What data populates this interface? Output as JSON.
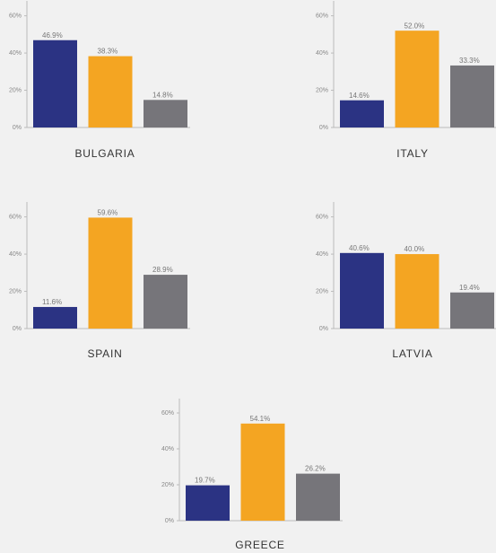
{
  "chart_data": [
    {
      "type": "bar",
      "title": "BULGARIA",
      "categories": [
        null,
        null,
        null
      ],
      "values": [
        46.9,
        38.3,
        14.8
      ],
      "value_labels": [
        "46.9%",
        "38.3%",
        "14.8%"
      ],
      "colors": [
        "#2b3383",
        "#f4a522",
        "#76757a"
      ],
      "ylim": [
        0,
        68
      ],
      "yticks": [
        {
          "value": 0,
          "label": "0%"
        },
        {
          "value": 20,
          "label": "20%"
        },
        {
          "value": 40,
          "label": "40%"
        },
        {
          "value": 60,
          "label": "60%"
        }
      ]
    },
    {
      "type": "bar",
      "title": "ITALY",
      "categories": [
        null,
        null,
        null
      ],
      "values": [
        14.6,
        52.0,
        33.3
      ],
      "value_labels": [
        "14.6%",
        "52.0%",
        "33.3%"
      ],
      "colors": [
        "#2b3383",
        "#f4a522",
        "#76757a"
      ],
      "ylim": [
        0,
        68
      ],
      "yticks": [
        {
          "value": 0,
          "label": "0%"
        },
        {
          "value": 20,
          "label": "20%"
        },
        {
          "value": 40,
          "label": "40%"
        },
        {
          "value": 60,
          "label": "60%"
        }
      ]
    },
    {
      "type": "bar",
      "title": "SPAIN",
      "categories": [
        null,
        null,
        null
      ],
      "values": [
        11.6,
        59.6,
        28.9
      ],
      "value_labels": [
        "11.6%",
        "59.6%",
        "28.9%"
      ],
      "colors": [
        "#2b3383",
        "#f4a522",
        "#76757a"
      ],
      "ylim": [
        0,
        68
      ],
      "yticks": [
        {
          "value": 0,
          "label": "0%"
        },
        {
          "value": 20,
          "label": "20%"
        },
        {
          "value": 40,
          "label": "40%"
        },
        {
          "value": 60,
          "label": "60%"
        }
      ]
    },
    {
      "type": "bar",
      "title": "LATVIA",
      "categories": [
        null,
        null,
        null
      ],
      "values": [
        40.6,
        40.0,
        19.4
      ],
      "value_labels": [
        "40.6%",
        "40.0%",
        "19.4%"
      ],
      "colors": [
        "#2b3383",
        "#f4a522",
        "#76757a"
      ],
      "ylim": [
        0,
        68
      ],
      "yticks": [
        {
          "value": 0,
          "label": "0%"
        },
        {
          "value": 20,
          "label": "20%"
        },
        {
          "value": 40,
          "label": "40%"
        },
        {
          "value": 60,
          "label": "60%"
        }
      ]
    },
    {
      "type": "bar",
      "title": "GREECE",
      "categories": [
        null,
        null,
        null
      ],
      "values": [
        19.7,
        54.1,
        26.2
      ],
      "value_labels": [
        "19.7%",
        "54.1%",
        "26.2%"
      ],
      "colors": [
        "#2b3383",
        "#f4a522",
        "#76757a"
      ],
      "ylim": [
        0,
        68
      ],
      "yticks": [
        {
          "value": 0,
          "label": "0%"
        },
        {
          "value": 20,
          "label": "20%"
        },
        {
          "value": 40,
          "label": "40%"
        },
        {
          "value": 60,
          "label": "60%"
        }
      ]
    }
  ]
}
